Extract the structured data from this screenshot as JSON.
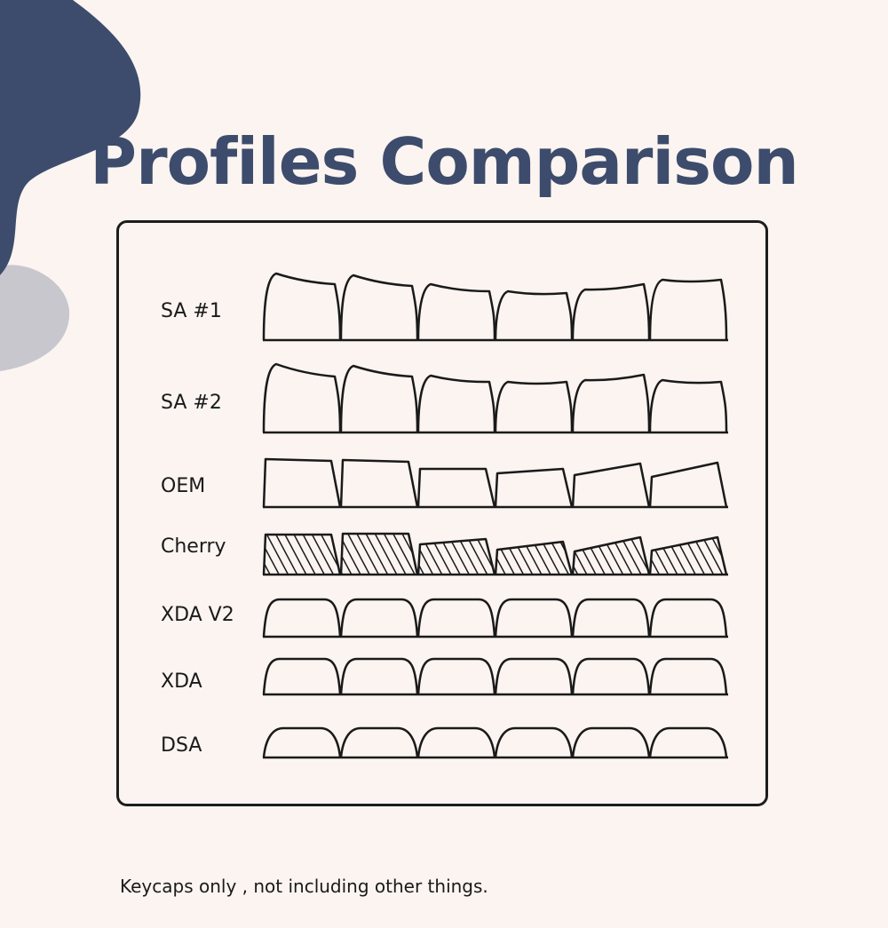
{
  "colors": {
    "background": "#fbf4f0",
    "title": "#3d4c6c",
    "blob_dark": "#3d4c6c",
    "blob_light": "#c8c7ce",
    "outline": "#1a1a1a"
  },
  "header": {
    "title": "Profiles Comparison"
  },
  "profiles": [
    {
      "name": "SA #1"
    },
    {
      "name": "SA #2"
    },
    {
      "name": "OEM"
    },
    {
      "name": "Cherry",
      "hatched": true
    },
    {
      "name": "XDA V2"
    },
    {
      "name": "XDA"
    },
    {
      "name": "DSA"
    }
  ],
  "footer": {
    "note": "Keycaps only , not including other things."
  }
}
